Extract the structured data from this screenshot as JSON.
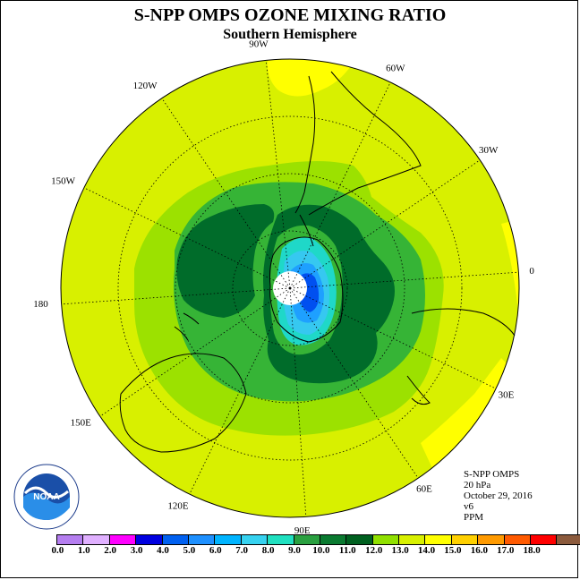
{
  "header": {
    "title": "S-NPP OMPS OZONE MIXING RATIO",
    "subtitle": "Southern Hemisphere"
  },
  "map": {
    "longitude_labels": [
      "90W",
      "60W",
      "30W",
      "0",
      "30E",
      "60E",
      "90E",
      "120E",
      "150E",
      "180",
      "150W",
      "120W"
    ],
    "colors": {
      "background_field": "#d8f000",
      "bright_yellow": "#ffff00",
      "light_green": "#9ce100",
      "mid_green": "#36b436",
      "dark_green": "#006c2a",
      "teal": "#1fd8c8",
      "cyan": "#36c8f0",
      "light_blue": "#1ea0ff",
      "blue": "#0050f0",
      "dark_blue": "#0000d0",
      "pole_hole": "#ffffff",
      "coast": "#000000"
    }
  },
  "info": {
    "lines": [
      "S-NPP OMPS",
      "20 hPa",
      "October 29, 2016",
      "v6",
      "PPM"
    ]
  },
  "colorbar": {
    "colors": [
      "#b57ef0",
      "#e0b0ff",
      "#ff00ff",
      "#0000e0",
      "#0060f0",
      "#1e90ff",
      "#00b4ff",
      "#36d2f0",
      "#20e0c0",
      "#2aa040",
      "#0a7a30",
      "#006020",
      "#90e000",
      "#d8f000",
      "#ffff00",
      "#ffd000",
      "#ff9a00",
      "#ff5a00",
      "#ff0000",
      "#8b5a3c"
    ],
    "labels": [
      "0.0",
      "1.0",
      "2.0",
      "3.0",
      "4.0",
      "5.0",
      "6.0",
      "7.0",
      "8.0",
      "9.0",
      "10.0",
      "11.0",
      "12.0",
      "13.0",
      "14.0",
      "15.0",
      "16.0",
      "17.0",
      "18.0"
    ]
  },
  "logo": {
    "text": "NOAA",
    "ring_text": "NATIONAL OCEANIC AND ATMOSPHERIC ADMINISTRATION · U.S. DEPARTMENT OF COMMERCE"
  }
}
